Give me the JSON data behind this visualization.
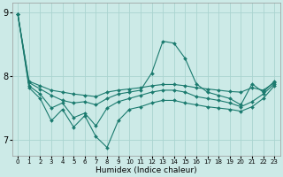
{
  "title": "",
  "xlabel": "Humidex (Indice chaleur)",
  "background_color": "#cceae7",
  "line_color": "#1a7a6e",
  "grid_color": "#aad4d0",
  "x": [
    0,
    1,
    2,
    3,
    4,
    5,
    6,
    7,
    8,
    9,
    10,
    11,
    12,
    13,
    14,
    15,
    16,
    17,
    18,
    19,
    20,
    21,
    22,
    23
  ],
  "line1": [
    8.97,
    7.92,
    7.85,
    7.78,
    7.75,
    7.72,
    7.7,
    7.68,
    7.75,
    7.78,
    7.8,
    7.82,
    7.85,
    7.87,
    7.87,
    7.85,
    7.82,
    7.8,
    7.78,
    7.76,
    7.75,
    7.82,
    7.78,
    7.9
  ],
  "line2": [
    8.97,
    7.9,
    7.8,
    7.7,
    7.62,
    7.58,
    7.6,
    7.55,
    7.65,
    7.72,
    7.75,
    7.78,
    8.05,
    8.55,
    8.52,
    8.28,
    7.88,
    7.75,
    7.7,
    7.65,
    7.55,
    7.88,
    7.75,
    7.92
  ],
  "line3": [
    8.97,
    7.85,
    7.72,
    7.5,
    7.58,
    7.35,
    7.42,
    7.22,
    7.5,
    7.6,
    7.65,
    7.7,
    7.75,
    7.78,
    7.78,
    7.75,
    7.68,
    7.65,
    7.62,
    7.58,
    7.52,
    7.6,
    7.72,
    7.88
  ],
  "line4": [
    8.97,
    7.82,
    7.65,
    7.3,
    7.48,
    7.2,
    7.38,
    7.05,
    6.88,
    7.3,
    7.48,
    7.52,
    7.58,
    7.62,
    7.62,
    7.58,
    7.55,
    7.52,
    7.5,
    7.48,
    7.45,
    7.52,
    7.65,
    7.85
  ],
  "ylim": [
    6.75,
    9.15
  ],
  "xlim": [
    -0.5,
    23.5
  ],
  "yticks": [
    7,
    8,
    9
  ],
  "xticks": [
    0,
    1,
    2,
    3,
    4,
    5,
    6,
    7,
    8,
    9,
    10,
    11,
    12,
    13,
    14,
    15,
    16,
    17,
    18,
    19,
    20,
    21,
    22,
    23
  ]
}
